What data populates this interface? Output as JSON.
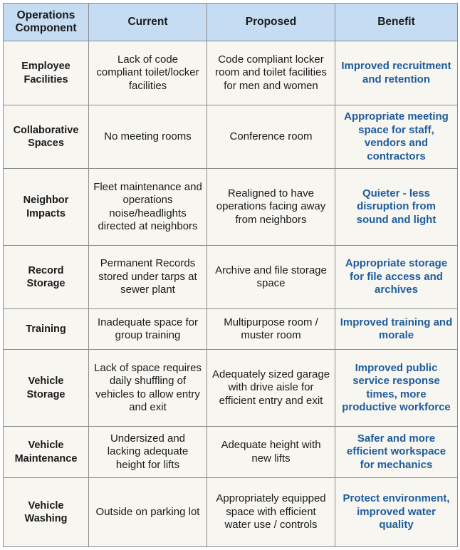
{
  "table": {
    "header": [
      "Operations Component",
      "Current",
      "Proposed",
      "Benefit"
    ],
    "rows": [
      [
        "Employee Facilities",
        "Lack of code compliant toilet/locker facilities",
        "Code compliant locker room and toilet facilities for men and women",
        "Improved recruitment and retention"
      ],
      [
        "Collaborative Spaces",
        "No meeting rooms",
        "Conference room",
        "Appropriate meeting space for staff, vendors and contractors"
      ],
      [
        "Neighbor Impacts",
        "Fleet maintenance and operations noise/headlights directed at neighbors",
        "Realigned to have operations facing away from neighbors",
        "Quieter - less disruption from sound and light"
      ],
      [
        "Record Storage",
        "Permanent Records stored under tarps at sewer plant",
        "Archive and file storage space",
        "Appropriate storage for file access and archives"
      ],
      [
        "Training",
        "Inadequate space for group training",
        "Multipurpose room / muster room",
        "Improved training and morale"
      ],
      [
        "Vehicle Storage",
        "Lack of space requires daily shuffling of vehicles to allow entry and exit",
        "Adequately sized garage with drive aisle for efficient entry and exit",
        "Improved public service response times, more productive workforce"
      ],
      [
        "Vehicle Maintenance",
        "Undersized and lacking adequate height for lifts",
        "Adequate height with new lifts",
        "Safer and more efficient workspace for mechanics"
      ],
      [
        "Vehicle Washing",
        "Outside on parking lot",
        "Appropriately equipped space with efficient water use / controls",
        "Protect environment, improved water quality"
      ]
    ]
  }
}
